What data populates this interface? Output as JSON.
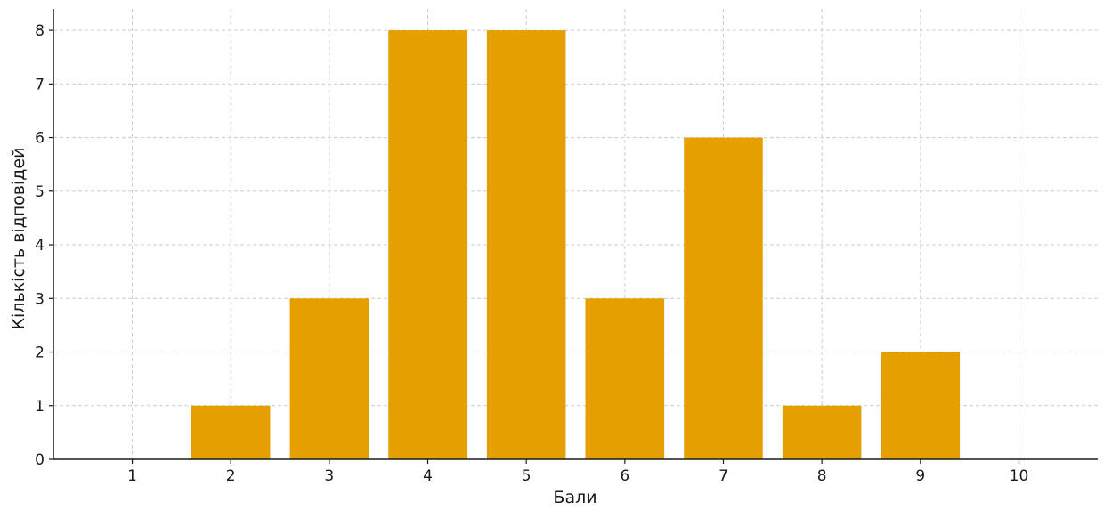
{
  "chart_data": {
    "type": "bar",
    "title": "",
    "xlabel": "Бали",
    "ylabel": "Кількість відповідей",
    "categories": [
      "1",
      "2",
      "3",
      "4",
      "5",
      "6",
      "7",
      "8",
      "9",
      "10"
    ],
    "values": [
      0,
      1,
      3,
      8,
      8,
      3,
      6,
      1,
      2,
      0
    ],
    "yticks": [
      "0",
      "1",
      "2",
      "3",
      "4",
      "5",
      "6",
      "7",
      "8"
    ],
    "ylim": [
      0,
      8.4
    ],
    "grid": true,
    "bar_color": "#E69F00",
    "grid_color": "#cccccc",
    "axis_color": "#1a1a1a"
  }
}
